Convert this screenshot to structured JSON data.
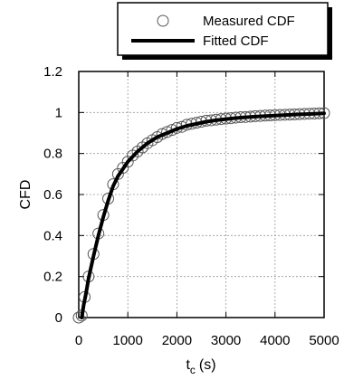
{
  "chart_data": {
    "type": "line",
    "title": "",
    "xlabel": "t",
    "xlabel_sub": "c",
    "xlabel_unit": "(s)",
    "ylabel": "CFD",
    "xlim": [
      0,
      5000
    ],
    "ylim": [
      0,
      1.2
    ],
    "xticks": [
      0,
      1000,
      2000,
      3000,
      4000,
      5000
    ],
    "yticks": [
      0,
      0.2,
      0.4,
      0.6,
      0.8,
      1,
      1.2
    ],
    "xtick_labels": [
      "0",
      "1000",
      "2000",
      "3000",
      "4000",
      "5000"
    ],
    "ytick_labels": [
      "0",
      "0.2",
      "0.4",
      "0.6",
      "0.8",
      "1",
      "1.2"
    ],
    "grid": true,
    "legend_position": "top-right-outside",
    "series": [
      {
        "name": "Measured CDF",
        "style": "open-circle-markers",
        "x": [
          0,
          60,
          120,
          200,
          300,
          400,
          500,
          600,
          700,
          800,
          900,
          1000,
          1100,
          1200,
          1300,
          1400,
          1500,
          1600,
          1700,
          1800,
          1900,
          2000,
          2100,
          2200,
          2300,
          2400,
          2500,
          2600,
          2700,
          2800,
          2900,
          3000,
          3100,
          3200,
          3300,
          3400,
          3500,
          3600,
          3700,
          3800,
          3900,
          4000,
          4100,
          4200,
          4300,
          4400,
          4500,
          4600,
          4700,
          4800,
          4900,
          5000
        ],
        "y": [
          0,
          0.01,
          0.1,
          0.2,
          0.31,
          0.41,
          0.5,
          0.58,
          0.65,
          0.7,
          0.73,
          0.76,
          0.79,
          0.81,
          0.83,
          0.85,
          0.865,
          0.88,
          0.895,
          0.905,
          0.915,
          0.925,
          0.93,
          0.94,
          0.945,
          0.95,
          0.955,
          0.96,
          0.962,
          0.965,
          0.968,
          0.97,
          0.972,
          0.975,
          0.977,
          0.978,
          0.98,
          0.982,
          0.983,
          0.985,
          0.986,
          0.987,
          0.988,
          0.989,
          0.99,
          0.991,
          0.992,
          0.993,
          0.994,
          0.995,
          0.996,
          0.997
        ]
      },
      {
        "name": "Fitted CDF",
        "style": "thick-line",
        "x": [
          60,
          100,
          150,
          200,
          300,
          400,
          500,
          600,
          700,
          800,
          1000,
          1200,
          1400,
          1600,
          1800,
          2000,
          2200,
          2400,
          2600,
          2800,
          3000,
          3300,
          3600,
          4000,
          4400,
          4800,
          5000
        ],
        "y": [
          0,
          0.06,
          0.12,
          0.19,
          0.3,
          0.4,
          0.49,
          0.57,
          0.64,
          0.69,
          0.76,
          0.81,
          0.85,
          0.88,
          0.9,
          0.92,
          0.935,
          0.945,
          0.955,
          0.962,
          0.968,
          0.975,
          0.98,
          0.985,
          0.99,
          0.994,
          0.996
        ]
      }
    ]
  },
  "colors": {
    "marker_stroke": "#555555",
    "fit_line": "#000000",
    "grid": "#9a9a9a",
    "axis": "#000000"
  }
}
